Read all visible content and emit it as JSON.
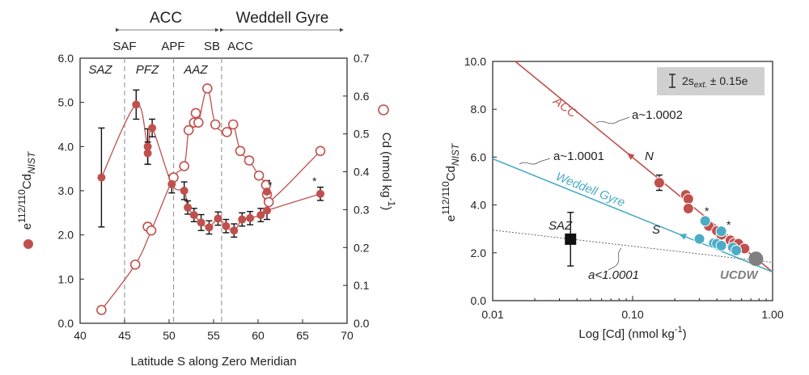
{
  "colors": {
    "red": "#c0504d",
    "blue": "#4bacc6",
    "gray": "#808080",
    "black": "#111111"
  },
  "chart_data": [
    {
      "type": "scatter",
      "xlabel": "Latitude S along Zero Meridian",
      "xlim": [
        40,
        70
      ],
      "xticks": [
        "40",
        "45",
        "50",
        "55",
        "60",
        "65",
        "70"
      ],
      "y_left": {
        "label_main": "e",
        "label_sup": "112/110",
        "label_sub": "NIST",
        "label_tail": "Cd",
        "lim": [
          0,
          6
        ],
        "ticks": [
          "0.0",
          "1.0",
          "2.0",
          "3.0",
          "4.0",
          "5.0",
          "6.0"
        ]
      },
      "y_right": {
        "label": "Cd (nmol kg-1)",
        "label_text": "Cd (nmol kg",
        "label_sup": "-1",
        "label_close": ")",
        "lim": [
          0,
          0.7
        ],
        "ticks": [
          "0.0",
          "0.1",
          "0.2",
          "0.3",
          "0.4",
          "0.5",
          "0.6",
          "0.7"
        ]
      },
      "regions": {
        "acc": "ACC",
        "weddell": "Weddell Gyre"
      },
      "fronts": [
        {
          "name": "SAF",
          "lat": 45.0
        },
        {
          "name": "APF",
          "lat": 50.5
        },
        {
          "name": "SB",
          "lat": 55.9
        },
        {
          "name": "ACC",
          "lat": 56.0
        }
      ],
      "zones": [
        {
          "name": "SAZ",
          "lat": 42.5
        },
        {
          "name": "PFZ",
          "lat": 47.5
        },
        {
          "name": "AAZ",
          "lat": 53.2
        }
      ],
      "isotope_points": [
        {
          "x": 42.4,
          "y": 3.3,
          "err": 1.12
        },
        {
          "x": 46.3,
          "y": 4.95,
          "err": 0.33
        },
        {
          "x": 47.6,
          "y": 4.0,
          "err": 0.4
        },
        {
          "x": 47.6,
          "y": 3.85,
          "err": 0.25
        },
        {
          "x": 48.1,
          "y": 4.42,
          "err": 0.2
        },
        {
          "x": 50.3,
          "y": 3.15,
          "err": 0.2
        },
        {
          "x": 51.7,
          "y": 3.0,
          "err": 0.2
        },
        {
          "x": 52.1,
          "y": 2.62,
          "err": 0.15
        },
        {
          "x": 52.8,
          "y": 2.45,
          "err": 0.15
        },
        {
          "x": 53.6,
          "y": 2.28,
          "err": 0.18
        },
        {
          "x": 54.5,
          "y": 2.17,
          "err": 0.15
        },
        {
          "x": 55.5,
          "y": 2.37,
          "err": 0.15
        },
        {
          "x": 56.4,
          "y": 2.2,
          "err": 0.15
        },
        {
          "x": 57.3,
          "y": 2.1,
          "err": 0.15
        },
        {
          "x": 58.2,
          "y": 2.35,
          "err": 0.15
        },
        {
          "x": 59.1,
          "y": 2.38,
          "err": 0.15
        },
        {
          "x": 60.3,
          "y": 2.45,
          "err": 0.15
        },
        {
          "x": 61.0,
          "y": 2.98,
          "err": 0.25
        },
        {
          "x": 61.0,
          "y": 2.55,
          "err": 0.2
        },
        {
          "x": 67.0,
          "y": 2.93,
          "err": 0.15
        }
      ],
      "isotope_line": [
        [
          42.4,
          3.3
        ],
        [
          46.3,
          4.95
        ],
        [
          47.6,
          4.0
        ],
        [
          48.1,
          4.42
        ],
        [
          50.3,
          3.15
        ],
        [
          51.7,
          3.0
        ],
        [
          52.1,
          2.62
        ],
        [
          52.8,
          2.45
        ],
        [
          53.6,
          2.28
        ],
        [
          54.5,
          2.17
        ],
        [
          55.5,
          2.37
        ],
        [
          56.4,
          2.2
        ],
        [
          57.3,
          2.1
        ],
        [
          58.2,
          2.35
        ],
        [
          59.1,
          2.38
        ],
        [
          60.3,
          2.45
        ],
        [
          61.0,
          2.55
        ],
        [
          67.0,
          2.93
        ]
      ],
      "cd_points": [
        [
          42.4,
          0.035
        ],
        [
          46.2,
          0.155
        ],
        [
          47.6,
          0.255
        ],
        [
          48.0,
          0.245
        ],
        [
          50.5,
          0.385
        ],
        [
          51.7,
          0.415
        ],
        [
          52.2,
          0.51
        ],
        [
          52.8,
          0.53
        ],
        [
          53.0,
          0.555
        ],
        [
          53.3,
          0.53
        ],
        [
          54.3,
          0.62
        ],
        [
          55.2,
          0.525
        ],
        [
          56.5,
          0.505
        ],
        [
          57.2,
          0.525
        ],
        [
          58.0,
          0.455
        ],
        [
          59.0,
          0.43
        ],
        [
          60.1,
          0.39
        ],
        [
          60.9,
          0.365
        ],
        [
          61.0,
          0.34
        ],
        [
          61.2,
          0.32
        ],
        [
          67.0,
          0.455
        ]
      ],
      "cd_line": [
        [
          42.4,
          0.035
        ],
        [
          46.2,
          0.155
        ],
        [
          48.0,
          0.245
        ],
        [
          50.5,
          0.385
        ],
        [
          51.7,
          0.415
        ],
        [
          52.2,
          0.51
        ],
        [
          52.8,
          0.53
        ],
        [
          53.3,
          0.53
        ],
        [
          54.3,
          0.62
        ],
        [
          55.2,
          0.525
        ],
        [
          56.5,
          0.505
        ],
        [
          57.2,
          0.525
        ],
        [
          58.0,
          0.455
        ],
        [
          59.0,
          0.43
        ],
        [
          60.1,
          0.39
        ],
        [
          60.9,
          0.365
        ],
        [
          61.2,
          0.32
        ],
        [
          67.0,
          0.455
        ]
      ],
      "annotations": [
        "*",
        "*"
      ]
    },
    {
      "type": "scatter",
      "xlabel": "Log [Cd] (nmol kg-1)",
      "xlabel_text": "Log [Cd] (nmol kg",
      "xlabel_sup": "-1",
      "xlabel_close": ")",
      "xscale": "log",
      "xlim": [
        0.01,
        1.0
      ],
      "xticks": [
        "0.01",
        "0.10",
        "1.00"
      ],
      "y": {
        "label_main": "e",
        "label_sup": "112/110",
        "label_sub": "NIST",
        "label_tail": "Cd",
        "lim": [
          0,
          10
        ],
        "ticks": [
          "0.0",
          "2.0",
          "4.0",
          "6.0",
          "8.0",
          "10.0"
        ]
      },
      "legend": {
        "label_main": "2s",
        "label_sub": "ext.",
        "label_tail": " ± 0.15e"
      },
      "lines": [
        {
          "name": "ACC",
          "color": "red",
          "pts": [
            [
              0.0145,
              10.0
            ],
            [
              1.0,
              1.2
            ]
          ],
          "arrow_label": "N",
          "fraction_label": "a~1.0002"
        },
        {
          "name": "Weddell Gyre",
          "color": "blue",
          "pts": [
            [
              0.01,
              5.93
            ],
            [
              1.0,
              1.2
            ]
          ],
          "arrow_label": "S",
          "fraction_label": "a~1.0001"
        },
        {
          "name": "SAZ",
          "color": "gray",
          "pts": [
            [
              0.01,
              2.95
            ],
            [
              1.0,
              1.6
            ]
          ],
          "fraction_label": "a<1.0001"
        }
      ],
      "acc_points": [
        [
          0.155,
          4.93
        ],
        [
          0.24,
          4.42
        ],
        [
          0.25,
          4.25
        ],
        [
          0.25,
          3.85
        ],
        [
          0.35,
          3.12
        ],
        [
          0.4,
          2.92
        ],
        [
          0.43,
          2.75
        ],
        [
          0.5,
          2.52
        ],
        [
          0.53,
          2.4
        ],
        [
          0.57,
          2.38
        ],
        [
          0.63,
          2.18
        ]
      ],
      "weddell_points": [
        [
          0.33,
          3.33
        ],
        [
          0.3,
          2.58
        ],
        [
          0.43,
          2.9
        ],
        [
          0.38,
          2.4
        ],
        [
          0.4,
          2.38
        ],
        [
          0.43,
          2.3
        ],
        [
          0.52,
          2.22
        ],
        [
          0.55,
          2.1
        ]
      ],
      "saz_point": [
        0.036,
        2.57,
        1.12
      ],
      "ucdw_point": [
        0.76,
        1.75
      ],
      "ucdw_label": "UCDW",
      "annotations": [
        "*",
        "*"
      ]
    }
  ]
}
